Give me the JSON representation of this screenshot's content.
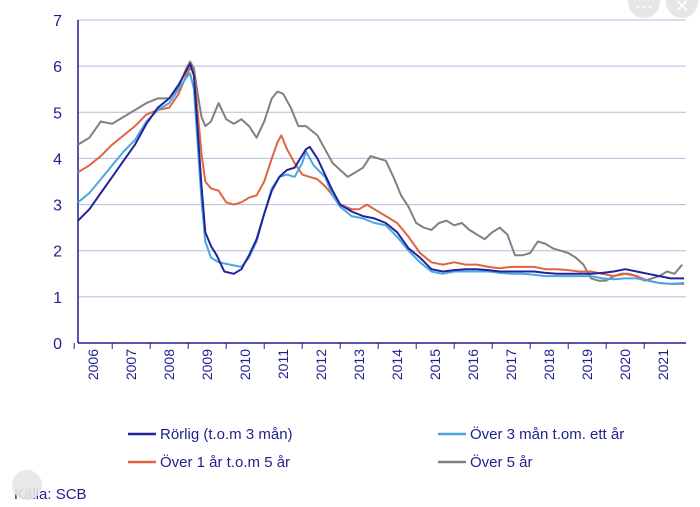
{
  "chart_data": {
    "type": "line",
    "ylim": [
      0,
      7
    ],
    "yticks": [
      "0",
      "1",
      "2",
      "3",
      "4",
      "5",
      "6",
      "7"
    ],
    "xlim": [
      2005.6,
      2021.6
    ],
    "xticks": [
      "2006",
      "2007",
      "2008",
      "2009",
      "2010",
      "2011",
      "2012",
      "2013",
      "2014",
      "2015",
      "2016",
      "2017",
      "2018",
      "2019",
      "2020",
      "2021"
    ],
    "grid": "horizontal",
    "legend": "bottom",
    "series": [
      {
        "name": "Rörlig (t.o.m 3 mån)",
        "color": "#23239c",
        "points": [
          [
            2005.6,
            2.65
          ],
          [
            2005.9,
            2.9
          ],
          [
            2006.2,
            3.25
          ],
          [
            2006.5,
            3.6
          ],
          [
            2006.8,
            3.95
          ],
          [
            2007.1,
            4.3
          ],
          [
            2007.4,
            4.75
          ],
          [
            2007.7,
            5.1
          ],
          [
            2008.0,
            5.3
          ],
          [
            2008.25,
            5.6
          ],
          [
            2008.45,
            5.9
          ],
          [
            2008.55,
            6.05
          ],
          [
            2008.65,
            5.8
          ],
          [
            2008.75,
            4.6
          ],
          [
            2008.85,
            3.4
          ],
          [
            2008.95,
            2.4
          ],
          [
            2009.1,
            2.1
          ],
          [
            2009.25,
            1.9
          ],
          [
            2009.45,
            1.55
          ],
          [
            2009.7,
            1.5
          ],
          [
            2009.9,
            1.6
          ],
          [
            2010.1,
            1.9
          ],
          [
            2010.3,
            2.25
          ],
          [
            2010.5,
            2.8
          ],
          [
            2010.7,
            3.3
          ],
          [
            2010.9,
            3.6
          ],
          [
            2011.1,
            3.75
          ],
          [
            2011.3,
            3.8
          ],
          [
            2011.45,
            4.0
          ],
          [
            2011.6,
            4.2
          ],
          [
            2011.7,
            4.25
          ],
          [
            2011.9,
            4.0
          ],
          [
            2012.1,
            3.65
          ],
          [
            2012.3,
            3.3
          ],
          [
            2012.5,
            3.0
          ],
          [
            2012.8,
            2.85
          ],
          [
            2013.1,
            2.75
          ],
          [
            2013.4,
            2.7
          ],
          [
            2013.7,
            2.6
          ],
          [
            2014.0,
            2.4
          ],
          [
            2014.3,
            2.05
          ],
          [
            2014.6,
            1.85
          ],
          [
            2014.9,
            1.6
          ],
          [
            2015.2,
            1.55
          ],
          [
            2015.5,
            1.58
          ],
          [
            2015.8,
            1.6
          ],
          [
            2016.1,
            1.6
          ],
          [
            2016.4,
            1.58
          ],
          [
            2016.7,
            1.55
          ],
          [
            2017.0,
            1.55
          ],
          [
            2017.3,
            1.55
          ],
          [
            2017.6,
            1.55
          ],
          [
            2017.9,
            1.52
          ],
          [
            2018.2,
            1.5
          ],
          [
            2018.5,
            1.5
          ],
          [
            2018.8,
            1.5
          ],
          [
            2019.1,
            1.5
          ],
          [
            2019.4,
            1.52
          ],
          [
            2019.7,
            1.55
          ],
          [
            2020.0,
            1.6
          ],
          [
            2020.3,
            1.55
          ],
          [
            2020.6,
            1.5
          ],
          [
            2020.9,
            1.45
          ],
          [
            2021.2,
            1.4
          ],
          [
            2021.55,
            1.4
          ]
        ]
      },
      {
        "name": "Över 3 mån t.om. ett år",
        "color": "#4aa8e0",
        "points": [
          [
            2005.6,
            3.05
          ],
          [
            2005.9,
            3.25
          ],
          [
            2006.2,
            3.55
          ],
          [
            2006.5,
            3.85
          ],
          [
            2006.8,
            4.15
          ],
          [
            2007.1,
            4.4
          ],
          [
            2007.4,
            4.8
          ],
          [
            2007.7,
            5.05
          ],
          [
            2008.0,
            5.2
          ],
          [
            2008.25,
            5.5
          ],
          [
            2008.45,
            5.75
          ],
          [
            2008.55,
            5.85
          ],
          [
            2008.65,
            5.5
          ],
          [
            2008.75,
            4.3
          ],
          [
            2008.85,
            3.1
          ],
          [
            2008.95,
            2.2
          ],
          [
            2009.1,
            1.85
          ],
          [
            2009.3,
            1.75
          ],
          [
            2009.6,
            1.7
          ],
          [
            2009.9,
            1.65
          ],
          [
            2010.1,
            1.85
          ],
          [
            2010.3,
            2.2
          ],
          [
            2010.5,
            2.8
          ],
          [
            2010.7,
            3.35
          ],
          [
            2010.9,
            3.6
          ],
          [
            2011.1,
            3.65
          ],
          [
            2011.3,
            3.6
          ],
          [
            2011.5,
            3.9
          ],
          [
            2011.6,
            4.15
          ],
          [
            2011.8,
            3.85
          ],
          [
            2012.1,
            3.6
          ],
          [
            2012.3,
            3.2
          ],
          [
            2012.5,
            2.95
          ],
          [
            2012.8,
            2.75
          ],
          [
            2013.1,
            2.7
          ],
          [
            2013.4,
            2.6
          ],
          [
            2013.7,
            2.55
          ],
          [
            2014.0,
            2.3
          ],
          [
            2014.3,
            2.0
          ],
          [
            2014.6,
            1.75
          ],
          [
            2014.9,
            1.55
          ],
          [
            2015.2,
            1.5
          ],
          [
            2015.5,
            1.55
          ],
          [
            2015.8,
            1.55
          ],
          [
            2016.1,
            1.55
          ],
          [
            2016.4,
            1.55
          ],
          [
            2016.7,
            1.52
          ],
          [
            2017.0,
            1.5
          ],
          [
            2017.3,
            1.5
          ],
          [
            2017.6,
            1.48
          ],
          [
            2017.9,
            1.45
          ],
          [
            2018.2,
            1.45
          ],
          [
            2018.5,
            1.45
          ],
          [
            2018.8,
            1.45
          ],
          [
            2019.1,
            1.45
          ],
          [
            2019.4,
            1.4
          ],
          [
            2019.7,
            1.38
          ],
          [
            2020.0,
            1.4
          ],
          [
            2020.3,
            1.4
          ],
          [
            2020.6,
            1.35
          ],
          [
            2020.9,
            1.3
          ],
          [
            2021.2,
            1.28
          ],
          [
            2021.55,
            1.3
          ]
        ]
      },
      {
        "name": "Över 1 år t.o.m 5 år",
        "color": "#e0643f",
        "points": [
          [
            2005.6,
            3.7
          ],
          [
            2005.9,
            3.85
          ],
          [
            2006.2,
            4.05
          ],
          [
            2006.5,
            4.3
          ],
          [
            2006.8,
            4.5
          ],
          [
            2007.1,
            4.7
          ],
          [
            2007.4,
            4.95
          ],
          [
            2007.7,
            5.05
          ],
          [
            2008.0,
            5.1
          ],
          [
            2008.25,
            5.4
          ],
          [
            2008.45,
            5.8
          ],
          [
            2008.55,
            5.95
          ],
          [
            2008.65,
            5.9
          ],
          [
            2008.75,
            5.0
          ],
          [
            2008.85,
            4.1
          ],
          [
            2008.95,
            3.5
          ],
          [
            2009.1,
            3.35
          ],
          [
            2009.3,
            3.3
          ],
          [
            2009.5,
            3.05
          ],
          [
            2009.7,
            3.0
          ],
          [
            2009.9,
            3.05
          ],
          [
            2010.1,
            3.15
          ],
          [
            2010.3,
            3.2
          ],
          [
            2010.5,
            3.5
          ],
          [
            2010.7,
            4.0
          ],
          [
            2010.85,
            4.35
          ],
          [
            2010.95,
            4.5
          ],
          [
            2011.1,
            4.2
          ],
          [
            2011.3,
            3.9
          ],
          [
            2011.5,
            3.65
          ],
          [
            2011.7,
            3.6
          ],
          [
            2011.9,
            3.55
          ],
          [
            2012.1,
            3.4
          ],
          [
            2012.3,
            3.2
          ],
          [
            2012.5,
            3.0
          ],
          [
            2012.8,
            2.9
          ],
          [
            2013.0,
            2.9
          ],
          [
            2013.2,
            3.0
          ],
          [
            2013.4,
            2.9
          ],
          [
            2013.7,
            2.75
          ],
          [
            2014.0,
            2.6
          ],
          [
            2014.3,
            2.3
          ],
          [
            2014.6,
            1.95
          ],
          [
            2014.9,
            1.75
          ],
          [
            2015.2,
            1.7
          ],
          [
            2015.5,
            1.75
          ],
          [
            2015.8,
            1.7
          ],
          [
            2016.1,
            1.7
          ],
          [
            2016.4,
            1.65
          ],
          [
            2016.7,
            1.62
          ],
          [
            2017.0,
            1.65
          ],
          [
            2017.3,
            1.65
          ],
          [
            2017.6,
            1.65
          ],
          [
            2017.9,
            1.6
          ],
          [
            2018.2,
            1.6
          ],
          [
            2018.5,
            1.58
          ],
          [
            2018.8,
            1.55
          ],
          [
            2019.1,
            1.55
          ],
          [
            2019.4,
            1.5
          ],
          [
            2019.7,
            1.45
          ],
          [
            2020.0,
            1.5
          ],
          [
            2020.3,
            1.45
          ],
          [
            2020.6,
            1.35
          ],
          [
            2020.9,
            1.3
          ],
          [
            2021.2,
            1.28
          ],
          [
            2021.55,
            1.28
          ]
        ]
      },
      {
        "name": "Över 5 år",
        "color": "#808080",
        "points": [
          [
            2005.6,
            4.3
          ],
          [
            2005.9,
            4.45
          ],
          [
            2006.2,
            4.8
          ],
          [
            2006.5,
            4.75
          ],
          [
            2006.8,
            4.9
          ],
          [
            2007.1,
            5.05
          ],
          [
            2007.4,
            5.2
          ],
          [
            2007.7,
            5.3
          ],
          [
            2008.0,
            5.3
          ],
          [
            2008.25,
            5.55
          ],
          [
            2008.45,
            5.95
          ],
          [
            2008.55,
            6.1
          ],
          [
            2008.65,
            5.95
          ],
          [
            2008.75,
            5.4
          ],
          [
            2008.85,
            4.9
          ],
          [
            2008.95,
            4.7
          ],
          [
            2009.1,
            4.8
          ],
          [
            2009.3,
            5.2
          ],
          [
            2009.5,
            4.85
          ],
          [
            2009.7,
            4.75
          ],
          [
            2009.9,
            4.85
          ],
          [
            2010.1,
            4.7
          ],
          [
            2010.3,
            4.45
          ],
          [
            2010.5,
            4.8
          ],
          [
            2010.7,
            5.3
          ],
          [
            2010.85,
            5.45
          ],
          [
            2011.0,
            5.4
          ],
          [
            2011.2,
            5.1
          ],
          [
            2011.4,
            4.7
          ],
          [
            2011.6,
            4.7
          ],
          [
            2011.9,
            4.5
          ],
          [
            2012.1,
            4.2
          ],
          [
            2012.3,
            3.9
          ],
          [
            2012.5,
            3.75
          ],
          [
            2012.7,
            3.6
          ],
          [
            2012.9,
            3.7
          ],
          [
            2013.1,
            3.8
          ],
          [
            2013.3,
            4.05
          ],
          [
            2013.5,
            4.0
          ],
          [
            2013.7,
            3.95
          ],
          [
            2013.9,
            3.6
          ],
          [
            2014.1,
            3.2
          ],
          [
            2014.3,
            2.95
          ],
          [
            2014.5,
            2.6
          ],
          [
            2014.7,
            2.5
          ],
          [
            2014.9,
            2.45
          ],
          [
            2015.1,
            2.6
          ],
          [
            2015.3,
            2.65
          ],
          [
            2015.5,
            2.55
          ],
          [
            2015.7,
            2.6
          ],
          [
            2015.9,
            2.45
          ],
          [
            2016.1,
            2.35
          ],
          [
            2016.3,
            2.25
          ],
          [
            2016.5,
            2.4
          ],
          [
            2016.7,
            2.5
          ],
          [
            2016.9,
            2.35
          ],
          [
            2017.1,
            1.9
          ],
          [
            2017.3,
            1.9
          ],
          [
            2017.5,
            1.95
          ],
          [
            2017.7,
            2.2
          ],
          [
            2017.9,
            2.15
          ],
          [
            2018.1,
            2.05
          ],
          [
            2018.3,
            2.0
          ],
          [
            2018.5,
            1.95
          ],
          [
            2018.7,
            1.85
          ],
          [
            2018.9,
            1.7
          ],
          [
            2019.1,
            1.4
          ],
          [
            2019.3,
            1.35
          ],
          [
            2019.5,
            1.35
          ],
          [
            2019.7,
            1.45
          ],
          [
            2019.9,
            1.5
          ],
          [
            2020.1,
            1.5
          ],
          [
            2020.3,
            1.45
          ],
          [
            2020.5,
            1.35
          ],
          [
            2020.7,
            1.4
          ],
          [
            2020.9,
            1.45
          ],
          [
            2021.1,
            1.55
          ],
          [
            2021.3,
            1.5
          ],
          [
            2021.5,
            1.7
          ]
        ]
      }
    ],
    "source": "Källa: SCB"
  }
}
